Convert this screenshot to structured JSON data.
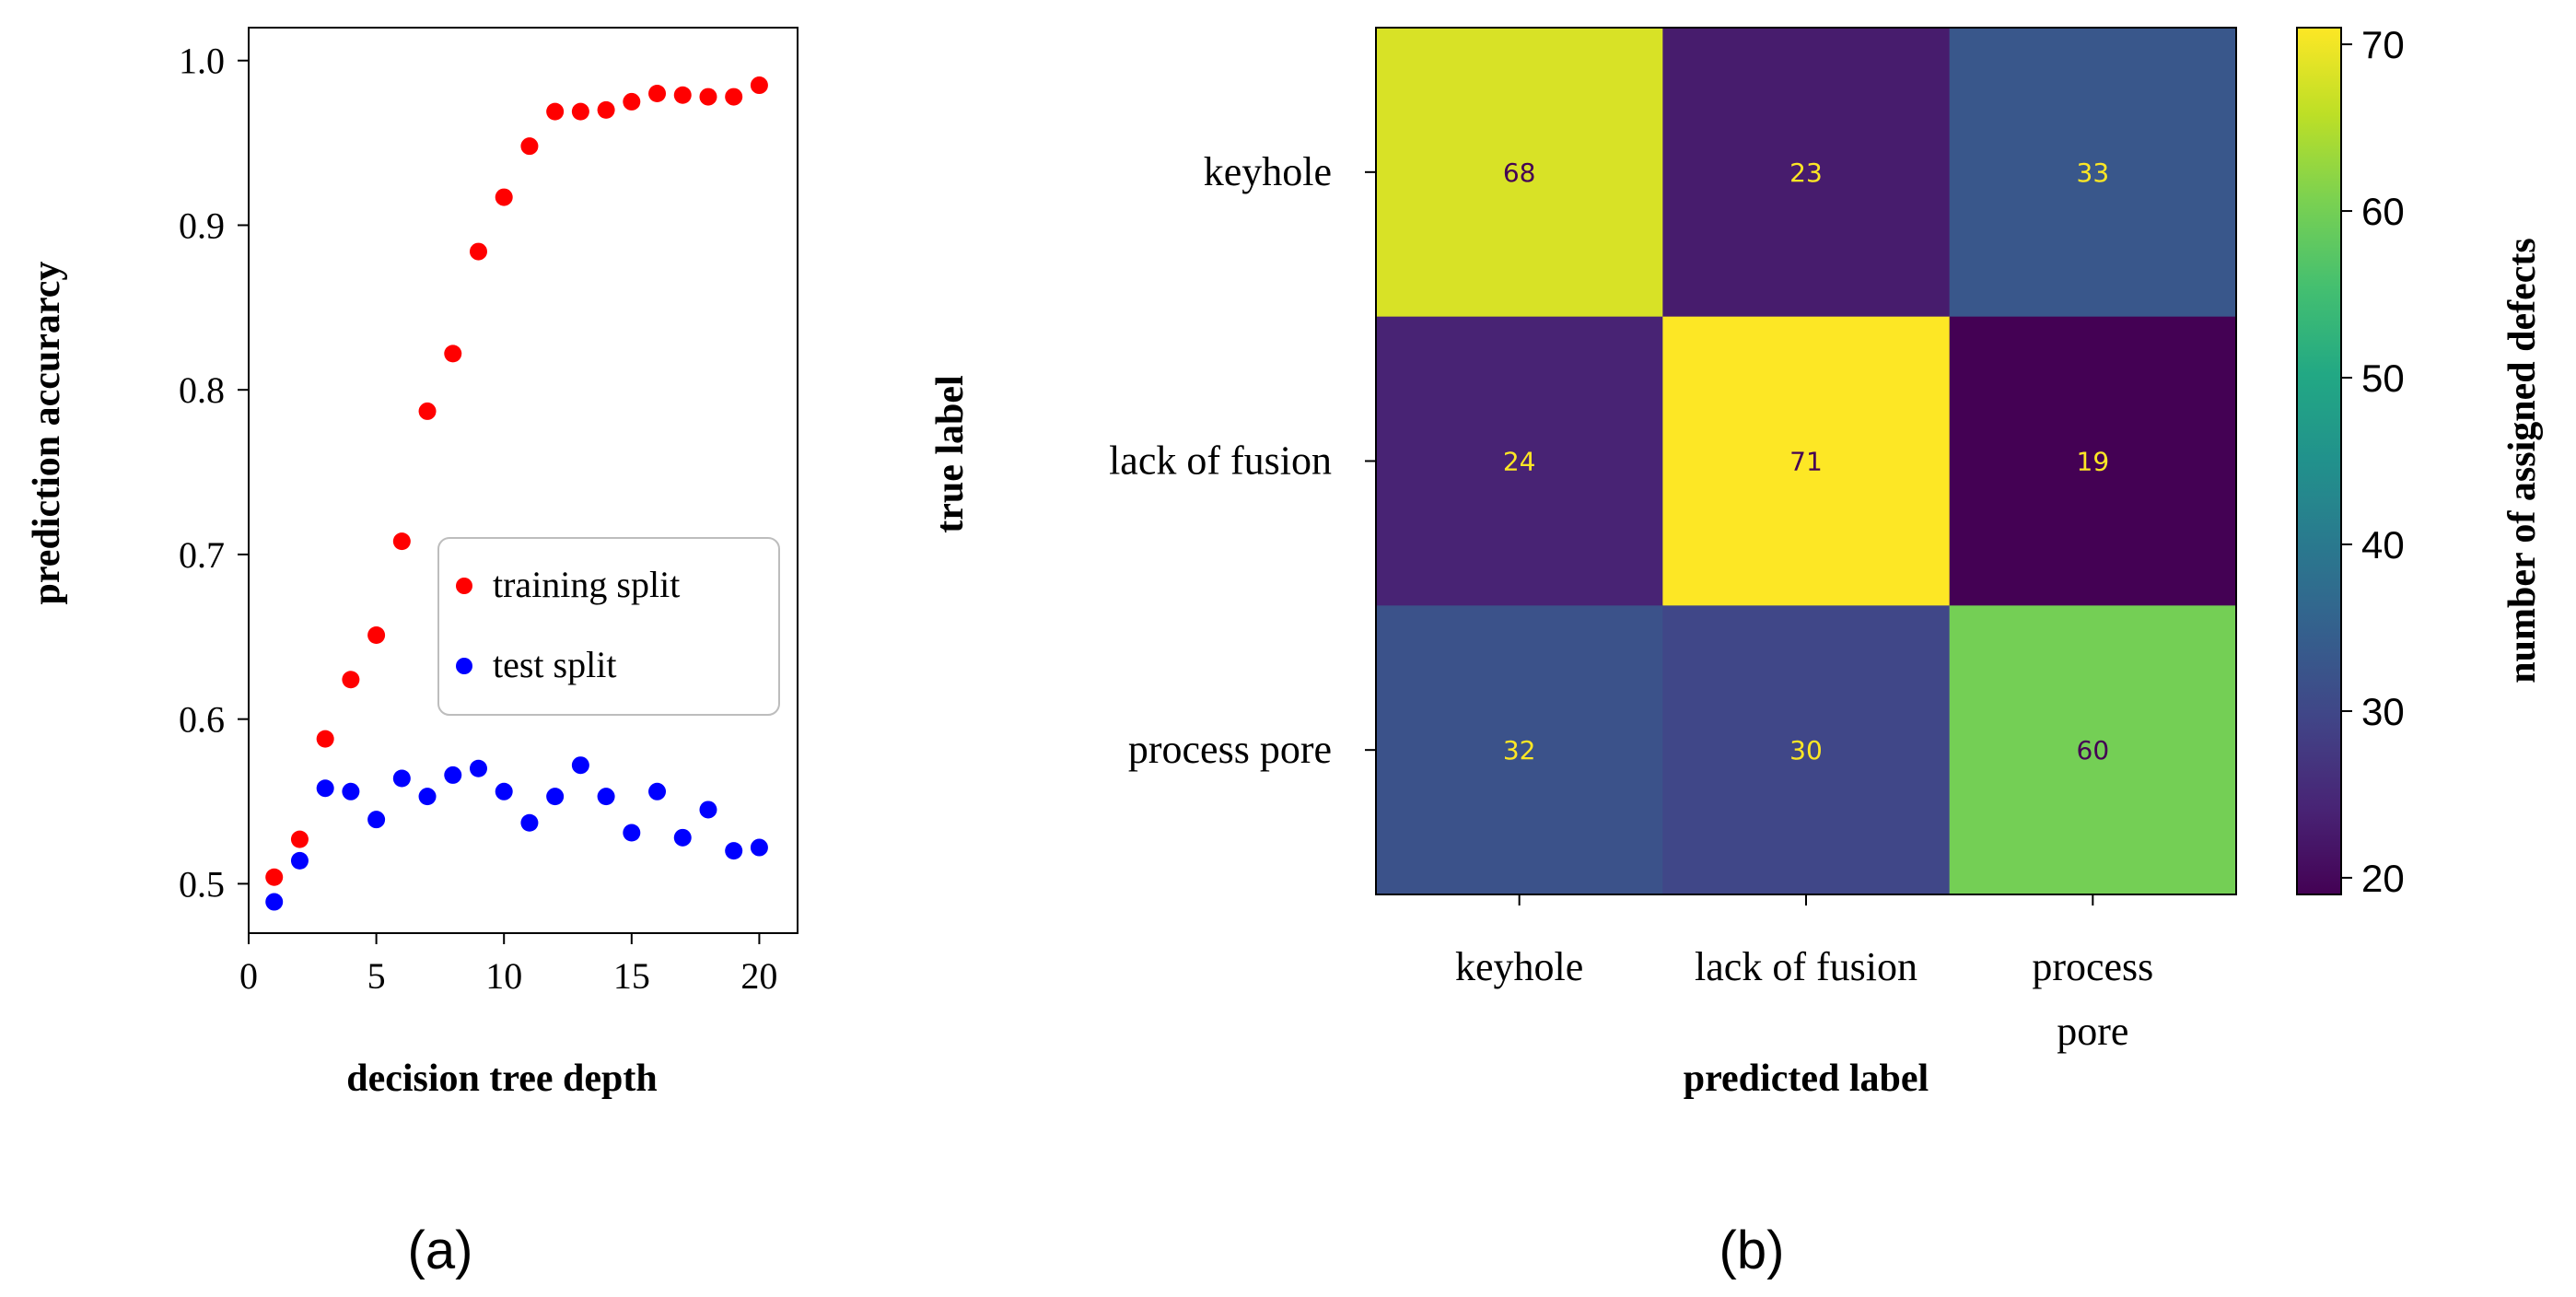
{
  "chart_data": [
    {
      "type": "scatter",
      "panel_label": "(a)",
      "xlabel": "decision tree depth",
      "ylabel": "prediction accurarcy",
      "xlim": [
        0,
        21.5
      ],
      "ylim": [
        0.47,
        1.02
      ],
      "xticks": [
        0,
        5,
        10,
        15,
        20
      ],
      "yticks": [
        0.5,
        0.6,
        0.7,
        0.8,
        0.9,
        1.0
      ],
      "xtick_labels": [
        "0",
        "5",
        "10",
        "15",
        "20"
      ],
      "ytick_labels": [
        "0.5",
        "0.6",
        "0.7",
        "0.8",
        "0.9",
        "1.0"
      ],
      "grid": false,
      "legend_position": "center-right",
      "series": [
        {
          "name": "training split",
          "color": "#ff0000",
          "x": [
            1,
            2,
            3,
            4,
            5,
            6,
            7,
            8,
            9,
            10,
            11,
            12,
            13,
            14,
            15,
            16,
            17,
            18,
            19,
            20
          ],
          "y": [
            0.504,
            0.527,
            0.588,
            0.624,
            0.651,
            0.708,
            0.787,
            0.822,
            0.884,
            0.917,
            0.948,
            0.969,
            0.969,
            0.97,
            0.975,
            0.98,
            0.979,
            0.978,
            0.978,
            0.985
          ]
        },
        {
          "name": "test split",
          "color": "#0000ff",
          "x": [
            1,
            2,
            3,
            4,
            5,
            6,
            7,
            8,
            9,
            10,
            11,
            12,
            13,
            14,
            15,
            16,
            17,
            18,
            19,
            20
          ],
          "y": [
            0.489,
            0.514,
            0.558,
            0.556,
            0.539,
            0.564,
            0.553,
            0.566,
            0.57,
            0.556,
            0.537,
            0.553,
            0.572,
            0.553,
            0.531,
            0.556,
            0.528,
            0.545,
            0.52,
            0.522
          ]
        }
      ]
    },
    {
      "type": "heatmap",
      "panel_label": "(b)",
      "xlabel": "predicted label",
      "ylabel": "true label",
      "colorbar_label": "number of assigned defects",
      "colormap": "viridis",
      "vmin": 19,
      "vmax": 71,
      "colorbar_ticks": [
        20,
        30,
        40,
        50,
        60,
        70
      ],
      "colorbar_tick_labels": [
        "20",
        "30",
        "40",
        "50",
        "60",
        "70"
      ],
      "row_labels": [
        "keyhole",
        "lack of fusion",
        "process pore"
      ],
      "col_labels": [
        [
          "keyhole"
        ],
        [
          "lack of fusion"
        ],
        [
          "process",
          "pore"
        ]
      ],
      "values": [
        [
          68,
          23,
          33
        ],
        [
          24,
          71,
          19
        ],
        [
          32,
          30,
          60
        ]
      ],
      "cell_text": [
        [
          "68",
          "23",
          "33"
        ],
        [
          "24",
          "71",
          "19"
        ],
        [
          "32",
          "30",
          "60"
        ]
      ],
      "text_color_dark": "#440154",
      "text_color_light": "#fde725"
    }
  ]
}
